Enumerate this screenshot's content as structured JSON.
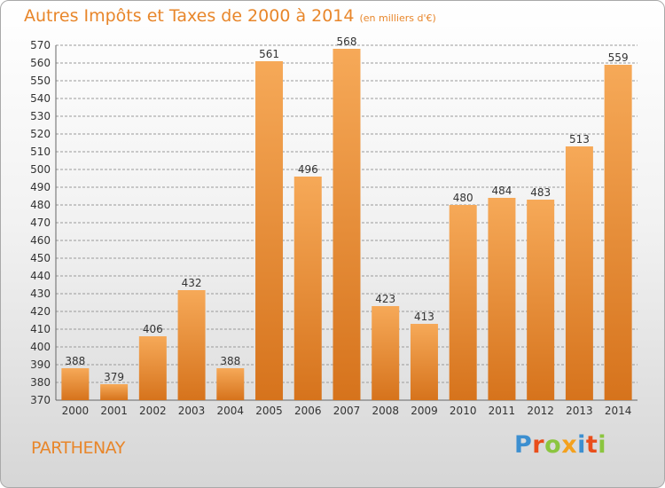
{
  "header": {
    "title": "Autres Impôts et Taxes de 2000 à 2014",
    "unit": "(en milliers d'€)"
  },
  "footer": {
    "city": "PARTHENAY",
    "logo": "Proxiti"
  },
  "colors": {
    "accent": "#e8862a",
    "bar_light": "#f5a553",
    "bar_dark": "#d9771f",
    "grid": "#999999",
    "text": "#333333"
  },
  "chart_data": {
    "type": "bar",
    "title": "Autres Impôts et Taxes de 2000 à 2014",
    "subtitle": "(en milliers d'€)",
    "categories": [
      "2000",
      "2001",
      "2002",
      "2003",
      "2004",
      "2005",
      "2006",
      "2007",
      "2008",
      "2009",
      "2010",
      "2011",
      "2012",
      "2013",
      "2014"
    ],
    "values": [
      388,
      379,
      406,
      432,
      388,
      561,
      496,
      568,
      423,
      413,
      480,
      484,
      483,
      513,
      559
    ],
    "ylim": [
      370,
      570
    ],
    "ytick_step": 10,
    "grid": true,
    "legend": "none",
    "data_labels": true
  }
}
